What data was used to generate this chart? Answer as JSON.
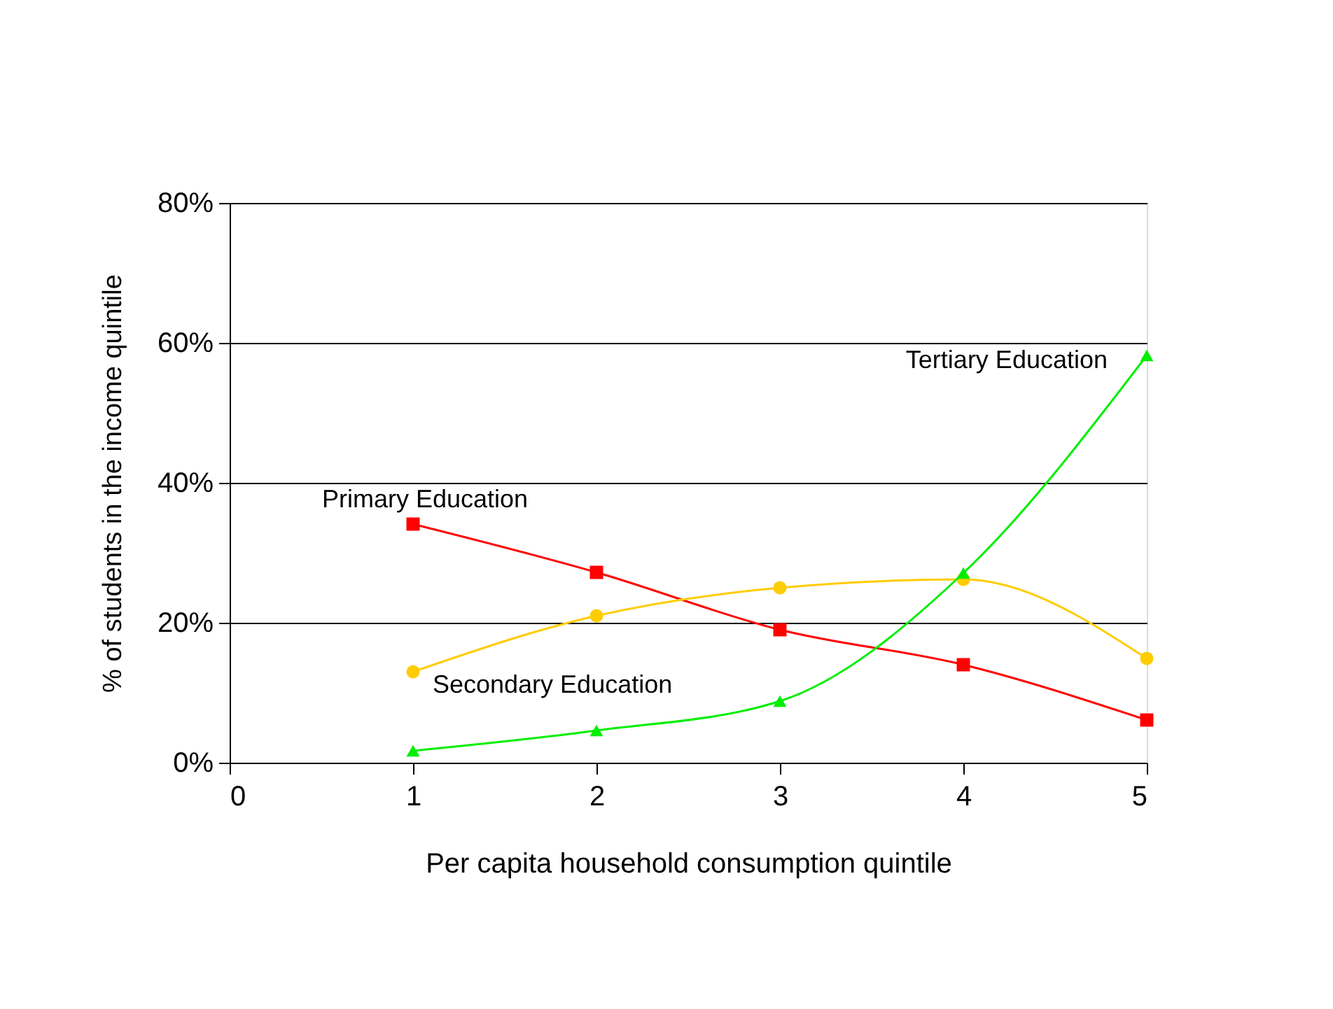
{
  "chart_data": {
    "type": "line",
    "xlabel": "Per capita household consumption quintile",
    "ylabel": "% of students in the income quintile",
    "x": [
      1,
      2,
      3,
      4,
      5
    ],
    "xlim": [
      0,
      5
    ],
    "xticks": [
      0,
      1,
      2,
      3,
      4,
      5
    ],
    "ylim": [
      0,
      80
    ],
    "yticks": [
      {
        "value": 0,
        "label": "0%"
      },
      {
        "value": 20,
        "label": "20%"
      },
      {
        "value": 40,
        "label": "40%"
      },
      {
        "value": 60,
        "label": "60%"
      },
      {
        "value": 80,
        "label": "80%"
      }
    ],
    "grid": "y",
    "legend": false,
    "series": [
      {
        "name": "Primary Education",
        "color": "#ff0000",
        "marker": "square",
        "values": [
          34.1,
          27.2,
          19.0,
          14.0,
          6.1
        ]
      },
      {
        "name": "Secondary Education",
        "color": "#ffcc00",
        "marker": "circle",
        "values": [
          13.0,
          21.0,
          25.0,
          26.2,
          14.9
        ]
      },
      {
        "name": "Tertiary Education",
        "color": "#00ee00",
        "marker": "triangle",
        "values": [
          1.7,
          4.6,
          8.8,
          27.1,
          58.2
        ]
      }
    ]
  }
}
